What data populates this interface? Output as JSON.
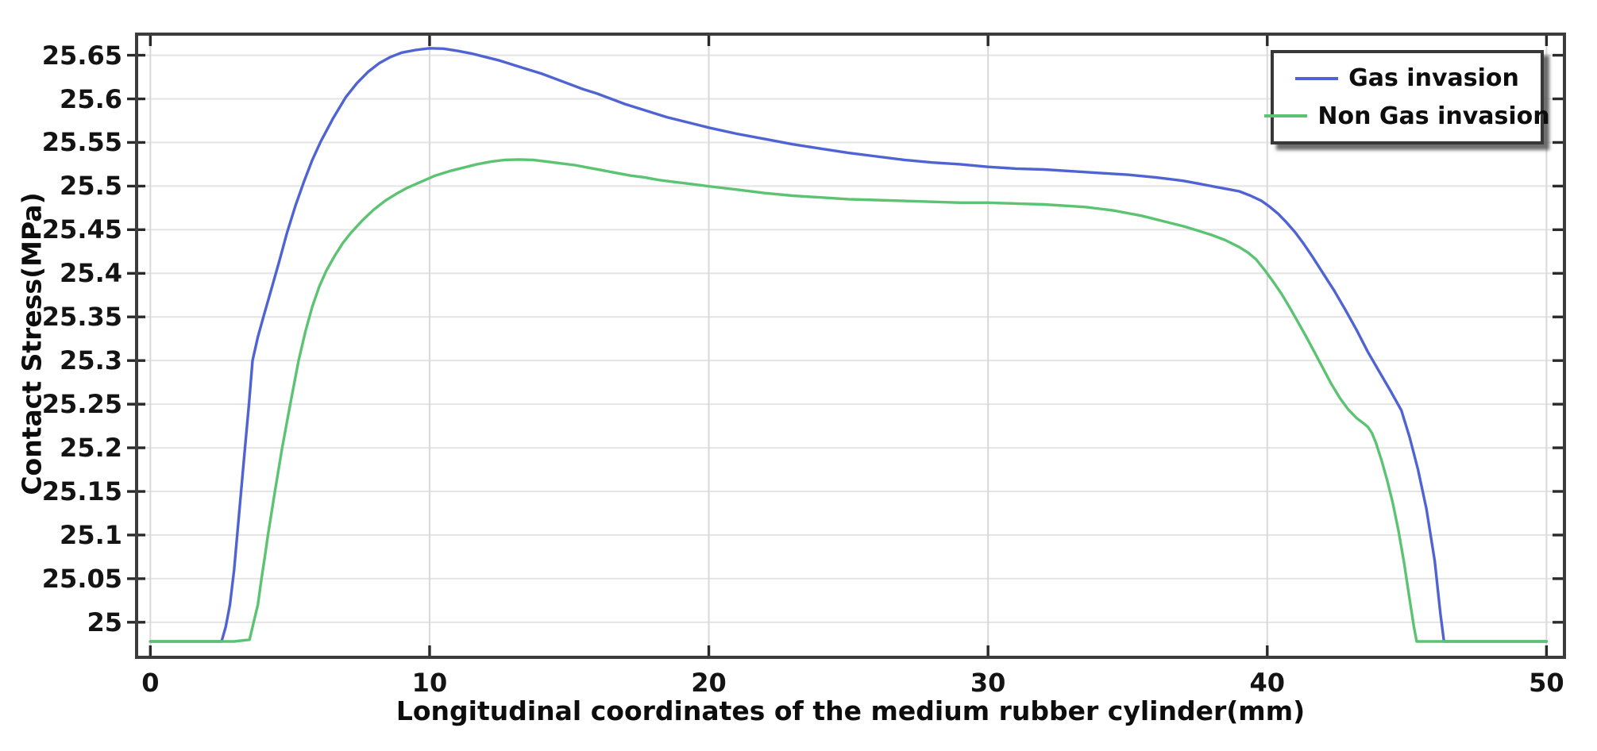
{
  "figure": {
    "background": "#ffffff",
    "frame_color": "#3c3c3c",
    "grid_color_horizontal": "#e4e4e4",
    "grid_color_vertical": "#d9d9d9",
    "tick_color": "#2a2a2a",
    "text_color": "#141414"
  },
  "chart_data": {
    "type": "line",
    "xlabel": "Longitudinal coordinates of the medium rubber cylinder(mm)",
    "ylabel": "Contact Stress(MPa)",
    "xlim": [
      -0.55,
      50.7
    ],
    "ylim": [
      24.958,
      25.676
    ],
    "grid": true,
    "x_ticks": [
      0,
      10,
      20,
      30,
      40,
      50
    ],
    "x_tick_labels": [
      "0",
      "10",
      "20",
      "30",
      "40",
      "50"
    ],
    "y_ticks": [
      25,
      25.05,
      25.1,
      25.15,
      25.2,
      25.25,
      25.3,
      25.35,
      25.4,
      25.45,
      25.5,
      25.55,
      25.6,
      25.65
    ],
    "y_tick_labels": [
      "25",
      "25.05",
      "25.1",
      "25.15",
      "25.2",
      "25.25",
      "25.3",
      "25.35",
      "25.4",
      "25.45",
      "25.5",
      "25.55",
      "25.6",
      "25.65"
    ],
    "legend": {
      "position": "top-right",
      "entries": [
        {
          "label": "Gas invasion",
          "color": "#4f63d2"
        },
        {
          "label": "Non Gas invasion",
          "color": "#5cc373"
        }
      ]
    },
    "series": [
      {
        "name": "Gas invasion",
        "color": "#4f63d2",
        "points": [
          [
            0,
            24.978
          ],
          [
            1.5,
            24.978
          ],
          [
            2.55,
            24.978
          ],
          [
            2.7,
            24.995
          ],
          [
            2.85,
            25.02
          ],
          [
            3.0,
            25.06
          ],
          [
            3.11,
            25.1
          ],
          [
            3.25,
            25.15
          ],
          [
            3.39,
            25.2
          ],
          [
            3.53,
            25.25
          ],
          [
            3.66,
            25.3
          ],
          [
            3.85,
            25.327
          ],
          [
            4.05,
            25.35
          ],
          [
            4.3,
            25.378
          ],
          [
            4.6,
            25.412
          ],
          [
            4.9,
            25.447
          ],
          [
            5.2,
            25.478
          ],
          [
            5.5,
            25.505
          ],
          [
            5.8,
            25.53
          ],
          [
            6.1,
            25.551
          ],
          [
            6.55,
            25.578
          ],
          [
            7.0,
            25.602
          ],
          [
            7.4,
            25.618
          ],
          [
            7.8,
            25.631
          ],
          [
            8.2,
            25.641
          ],
          [
            8.6,
            25.648
          ],
          [
            9.0,
            25.653
          ],
          [
            9.5,
            25.656
          ],
          [
            10.0,
            25.658
          ],
          [
            10.5,
            25.6575
          ],
          [
            11.0,
            25.655
          ],
          [
            11.5,
            25.652
          ],
          [
            12.0,
            25.648
          ],
          [
            12.5,
            25.644
          ],
          [
            13.0,
            25.639
          ],
          [
            13.5,
            25.634
          ],
          [
            14.0,
            25.629
          ],
          [
            14.5,
            25.623
          ],
          [
            15.0,
            25.617
          ],
          [
            15.5,
            25.611
          ],
          [
            16.0,
            25.606
          ],
          [
            16.5,
            25.6
          ],
          [
            17.0,
            25.594
          ],
          [
            17.5,
            25.589
          ],
          [
            18.0,
            25.584
          ],
          [
            18.5,
            25.579
          ],
          [
            19.0,
            25.575
          ],
          [
            19.5,
            25.571
          ],
          [
            20.0,
            25.567
          ],
          [
            21.0,
            25.56
          ],
          [
            22.0,
            25.554
          ],
          [
            23.0,
            25.548
          ],
          [
            24.0,
            25.543
          ],
          [
            25.0,
            25.538
          ],
          [
            26.0,
            25.534
          ],
          [
            27.0,
            25.53
          ],
          [
            28.0,
            25.527
          ],
          [
            29.0,
            25.525
          ],
          [
            30.0,
            25.522
          ],
          [
            31.0,
            25.52
          ],
          [
            32.0,
            25.519
          ],
          [
            33.0,
            25.517
          ],
          [
            34.0,
            25.515
          ],
          [
            35.0,
            25.513
          ],
          [
            36.0,
            25.51
          ],
          [
            36.5,
            25.508
          ],
          [
            37.0,
            25.506
          ],
          [
            37.5,
            25.503
          ],
          [
            38.0,
            25.5
          ],
          [
            38.5,
            25.497
          ],
          [
            39.0,
            25.494
          ],
          [
            39.4,
            25.489
          ],
          [
            39.8,
            25.483
          ],
          [
            40.1,
            25.476
          ],
          [
            40.4,
            25.468
          ],
          [
            40.7,
            25.458
          ],
          [
            41.0,
            25.447
          ],
          [
            41.3,
            25.434
          ],
          [
            41.6,
            25.42
          ],
          [
            42.0,
            25.4
          ],
          [
            42.4,
            25.38
          ],
          [
            42.8,
            25.358
          ],
          [
            43.2,
            25.335
          ],
          [
            43.6,
            25.31
          ],
          [
            44.0,
            25.288
          ],
          [
            44.4,
            25.266
          ],
          [
            44.8,
            25.243
          ],
          [
            45.1,
            25.212
          ],
          [
            45.4,
            25.175
          ],
          [
            45.7,
            25.13
          ],
          [
            46.0,
            25.07
          ],
          [
            46.2,
            25.01
          ],
          [
            46.33,
            24.978
          ],
          [
            47.0,
            24.978
          ],
          [
            48.5,
            24.978
          ],
          [
            50,
            24.978
          ]
        ]
      },
      {
        "name": "Non Gas invasion",
        "color": "#5cc373",
        "points": [
          [
            0,
            24.978
          ],
          [
            1.5,
            24.978
          ],
          [
            3.0,
            24.978
          ],
          [
            3.55,
            24.98
          ],
          [
            3.7,
            25.0
          ],
          [
            3.85,
            25.02
          ],
          [
            3.98,
            25.05
          ],
          [
            4.1,
            25.075
          ],
          [
            4.21,
            25.1
          ],
          [
            4.46,
            25.15
          ],
          [
            4.72,
            25.2
          ],
          [
            5.01,
            25.25
          ],
          [
            5.31,
            25.3
          ],
          [
            5.55,
            25.333
          ],
          [
            5.8,
            25.362
          ],
          [
            6.05,
            25.385
          ],
          [
            6.3,
            25.403
          ],
          [
            6.6,
            25.42
          ],
          [
            6.9,
            25.435
          ],
          [
            7.2,
            25.447
          ],
          [
            7.6,
            25.461
          ],
          [
            8.0,
            25.473
          ],
          [
            8.4,
            25.483
          ],
          [
            8.8,
            25.491
          ],
          [
            9.2,
            25.498
          ],
          [
            9.7,
            25.505
          ],
          [
            10.2,
            25.512
          ],
          [
            10.7,
            25.517
          ],
          [
            11.2,
            25.521
          ],
          [
            11.7,
            25.525
          ],
          [
            12.2,
            25.528
          ],
          [
            12.7,
            25.53
          ],
          [
            13.2,
            25.5305
          ],
          [
            13.7,
            25.53
          ],
          [
            14.2,
            25.528
          ],
          [
            14.7,
            25.526
          ],
          [
            15.2,
            25.524
          ],
          [
            15.7,
            25.521
          ],
          [
            16.2,
            25.518
          ],
          [
            16.7,
            25.515
          ],
          [
            17.2,
            25.512
          ],
          [
            17.7,
            25.51
          ],
          [
            18.2,
            25.507
          ],
          [
            18.7,
            25.505
          ],
          [
            19.2,
            25.503
          ],
          [
            19.7,
            25.501
          ],
          [
            20.2,
            25.499
          ],
          [
            21.0,
            25.496
          ],
          [
            22.0,
            25.492
          ],
          [
            23.0,
            25.489
          ],
          [
            24.0,
            25.487
          ],
          [
            25.0,
            25.485
          ],
          [
            26.0,
            25.484
          ],
          [
            27.0,
            25.483
          ],
          [
            28.0,
            25.482
          ],
          [
            29.0,
            25.481
          ],
          [
            30.0,
            25.481
          ],
          [
            31.0,
            25.48
          ],
          [
            32.0,
            25.479
          ],
          [
            33.0,
            25.477
          ],
          [
            33.5,
            25.476
          ],
          [
            34.0,
            25.474
          ],
          [
            34.5,
            25.472
          ],
          [
            35.0,
            25.469
          ],
          [
            35.5,
            25.466
          ],
          [
            36.0,
            25.462
          ],
          [
            36.5,
            25.458
          ],
          [
            37.0,
            25.454
          ],
          [
            37.5,
            25.449
          ],
          [
            38.0,
            25.444
          ],
          [
            38.5,
            25.438
          ],
          [
            39.0,
            25.43
          ],
          [
            39.3,
            25.424
          ],
          [
            39.6,
            25.416
          ],
          [
            39.9,
            25.404
          ],
          [
            40.2,
            25.391
          ],
          [
            40.5,
            25.377
          ],
          [
            40.8,
            25.361
          ],
          [
            41.1,
            25.344
          ],
          [
            41.4,
            25.327
          ],
          [
            41.7,
            25.309
          ],
          [
            42.0,
            25.291
          ],
          [
            42.3,
            25.273
          ],
          [
            42.6,
            25.257
          ],
          [
            42.9,
            25.244
          ],
          [
            43.2,
            25.234
          ],
          [
            43.45,
            25.228
          ],
          [
            43.6,
            25.224
          ],
          [
            43.75,
            25.217
          ],
          [
            43.9,
            25.205
          ],
          [
            44.1,
            25.185
          ],
          [
            44.3,
            25.162
          ],
          [
            44.5,
            25.136
          ],
          [
            44.7,
            25.105
          ],
          [
            44.9,
            25.068
          ],
          [
            45.1,
            25.026
          ],
          [
            45.25,
            24.995
          ],
          [
            45.35,
            24.978
          ],
          [
            46.5,
            24.978
          ],
          [
            48.5,
            24.978
          ],
          [
            50,
            24.978
          ]
        ]
      }
    ]
  }
}
